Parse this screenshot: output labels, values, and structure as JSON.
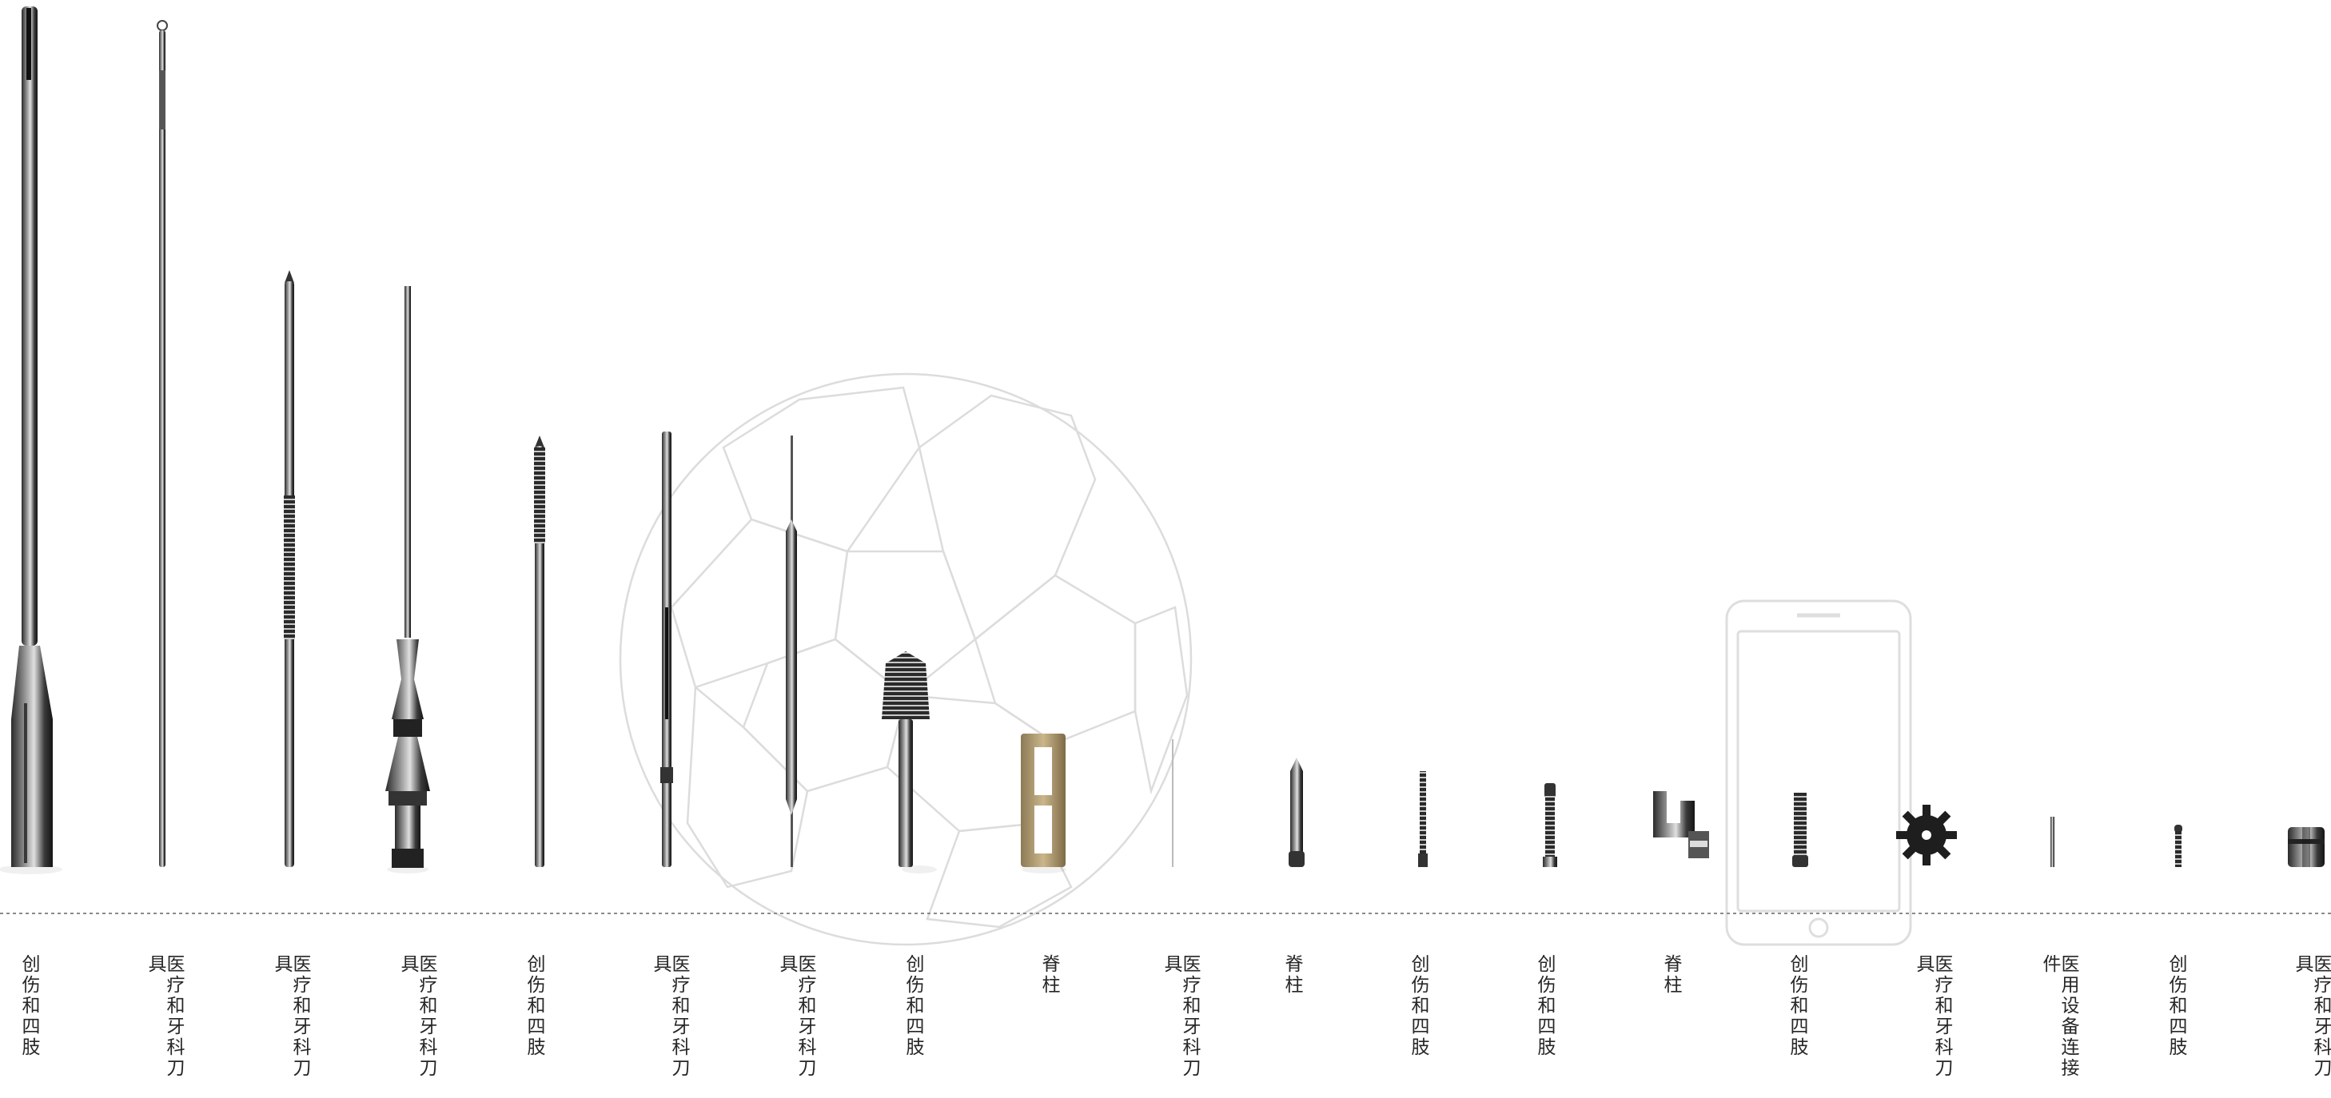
{
  "products": [
    {
      "label": "创伤和四肢",
      "shape": "cannula"
    },
    {
      "label": "医疗和牙科刀具",
      "shape": "long-pin"
    },
    {
      "label": "医疗和牙科刀具",
      "shape": "threaded-pin"
    },
    {
      "label": "医疗和牙科刀具",
      "shape": "drill-collar"
    },
    {
      "label": "创伤和四肢",
      "shape": "threaded-rod"
    },
    {
      "label": "医疗和牙科刀具",
      "shape": "slotted-pin"
    },
    {
      "label": "医疗和牙科刀具",
      "shape": "needle-wire"
    },
    {
      "label": "创伤和四肢",
      "shape": "bone-screw"
    },
    {
      "label": "脊柱",
      "shape": "cage"
    },
    {
      "label": "医疗和牙科刀具",
      "shape": "fine-wire"
    },
    {
      "label": "脊柱",
      "shape": "pointed-pin"
    },
    {
      "label": "创伤和四肢",
      "shape": "small-screw"
    },
    {
      "label": "创伤和四肢",
      "shape": "screw"
    },
    {
      "label": "脊柱",
      "shape": "hook"
    },
    {
      "label": "创伤和四肢",
      "shape": "screw"
    },
    {
      "label": "医疗和牙科刀具",
      "shape": "gear"
    },
    {
      "label": "医用设备连接件",
      "shape": "tiny-pin"
    },
    {
      "label": "创伤和四肢",
      "shape": "tiny-screw"
    },
    {
      "label": "医疗和牙科刀具",
      "shape": "nut"
    }
  ],
  "watermarks": [
    "soccer-ball-outline",
    "phone-outline"
  ],
  "colors": {
    "metal_dark": "#1c1c1c",
    "metal_mid": "#6a6a6a",
    "metal_light": "#d4d4d4",
    "gold": "#b8a27a",
    "outline": "#d9d9d9",
    "baseline": "#7a7a7a",
    "label": "#262626"
  }
}
